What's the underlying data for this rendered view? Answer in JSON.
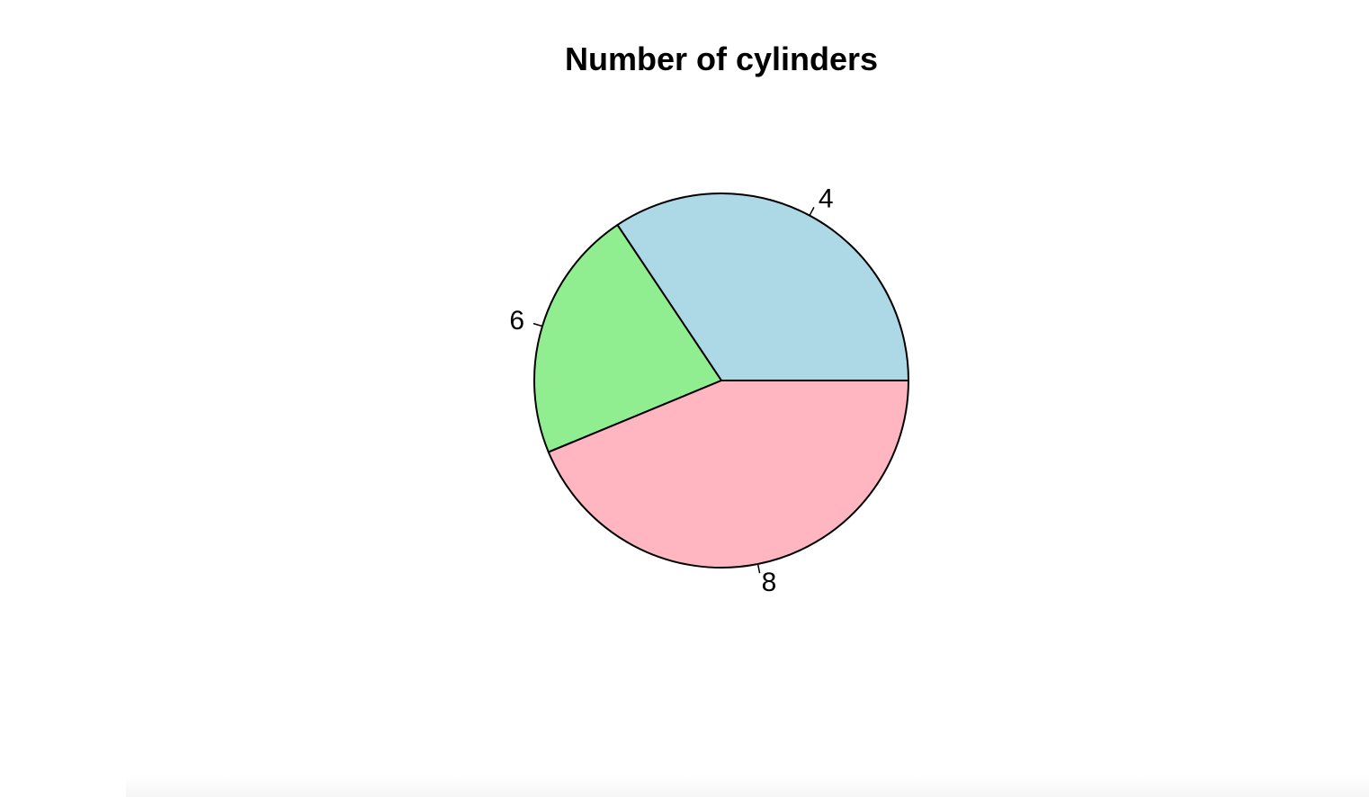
{
  "chart_data": {
    "type": "pie",
    "title": "Number of cylinders",
    "categories": [
      "4",
      "6",
      "8"
    ],
    "values": [
      11,
      7,
      14
    ],
    "colors": [
      "#ADD8E6",
      "#90EE90",
      "#FFB6C1"
    ],
    "start_angle_deg": 0,
    "direction": "counterclockwise",
    "border_color": "#000000"
  }
}
